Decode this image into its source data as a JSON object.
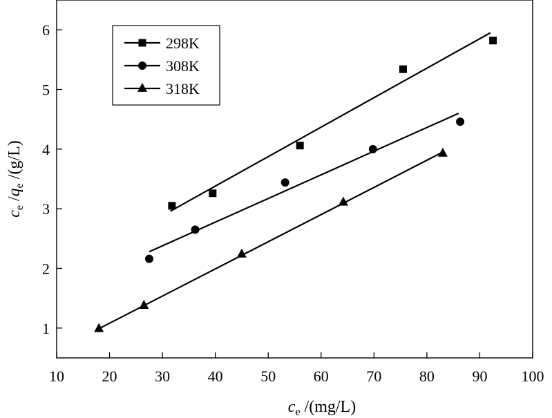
{
  "chart_data": {
    "type": "scatter",
    "xlim": [
      10,
      100
    ],
    "ylim": [
      0.5,
      6.5
    ],
    "xticks": [
      10,
      20,
      30,
      40,
      50,
      60,
      70,
      80,
      90,
      100
    ],
    "yticks": [
      1,
      2,
      3,
      4,
      5,
      6
    ],
    "xlabel": {
      "var": "c",
      "sub": "e",
      "rest": " /(mg/L)"
    },
    "ylabel": {
      "var1": "c",
      "sub1": "e",
      "mid": " /",
      "var2": "q",
      "sub2": "e",
      "rest": " /(g/L)"
    },
    "legend": {
      "position": "top-left"
    },
    "grid": false,
    "series": [
      {
        "name": "298K",
        "marker": "square",
        "points": [
          [
            31.8,
            3.05
          ],
          [
            39.5,
            3.26
          ],
          [
            56.0,
            4.06
          ],
          [
            75.5,
            5.34
          ],
          [
            92.5,
            5.82
          ]
        ],
        "fit": [
          [
            31.5,
            2.96
          ],
          [
            92.0,
            5.95
          ]
        ]
      },
      {
        "name": "308K",
        "marker": "circle",
        "points": [
          [
            27.5,
            2.16
          ],
          [
            36.2,
            2.65
          ],
          [
            53.2,
            3.44
          ],
          [
            69.8,
            4.0
          ],
          [
            86.3,
            4.46
          ]
        ],
        "fit": [
          [
            27.5,
            2.28
          ],
          [
            86.0,
            4.6
          ]
        ]
      },
      {
        "name": "318K",
        "marker": "triangle",
        "points": [
          [
            18.0,
            0.99
          ],
          [
            26.5,
            1.38
          ],
          [
            45.0,
            2.24
          ],
          [
            64.2,
            3.11
          ],
          [
            83.0,
            3.93
          ]
        ],
        "fit": [
          [
            18.0,
            0.99
          ],
          [
            83.0,
            3.95
          ]
        ]
      }
    ]
  }
}
